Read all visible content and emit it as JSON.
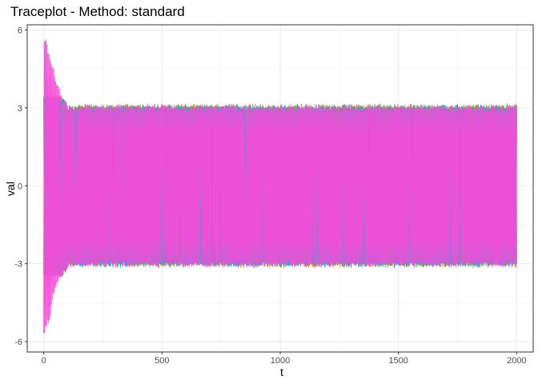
{
  "chart_data": {
    "type": "line",
    "title": "Traceplot - Method: standard",
    "xlabel": "t",
    "ylabel": "val",
    "xlim": [
      -70,
      2070
    ],
    "ylim": [
      -6.4,
      6.2
    ],
    "x_ticks": [
      0,
      500,
      1000,
      1500,
      2000
    ],
    "y_ticks": [
      -6,
      -3,
      0,
      3,
      6
    ],
    "grid": true,
    "legend": "none",
    "t_range": [
      0,
      2000
    ],
    "series": [
      {
        "color": "#e7861b",
        "values": "oscillating between about -3.1 and 3.1"
      },
      {
        "color": "#4fae2f",
        "values": "oscillating between about -3.2 and 3.2"
      },
      {
        "color": "#1fa8e6",
        "values": "oscillating between about -3.3 and 3.3"
      },
      {
        "color": "#f84bd7",
        "values": "oscillating between about -3.1 and 3.1; initial transient to about ±5.8 near t=0"
      }
    ],
    "envelope_markers": [
      {
        "t": 0,
        "upper": 5.85,
        "lower": -5.85
      },
      {
        "t": 10,
        "upper": 5.7,
        "lower": -5.6
      },
      {
        "t": 25,
        "upper": 5.0,
        "lower": -5.3
      },
      {
        "t": 40,
        "upper": 4.6,
        "lower": -4.3
      },
      {
        "t": 60,
        "upper": 3.9,
        "lower": -3.8
      },
      {
        "t": 80,
        "upper": 3.4,
        "lower": -3.5
      },
      {
        "t": 100,
        "upper": 3.2,
        "lower": -3.2
      },
      {
        "t": 2000,
        "upper": 3.2,
        "lower": -3.2
      }
    ],
    "colors": {
      "panel_border": "#333333",
      "grid_major": "#ebebeb",
      "grid_minor": "#f4f4f4",
      "tick_text": "#4d4d4d"
    }
  }
}
